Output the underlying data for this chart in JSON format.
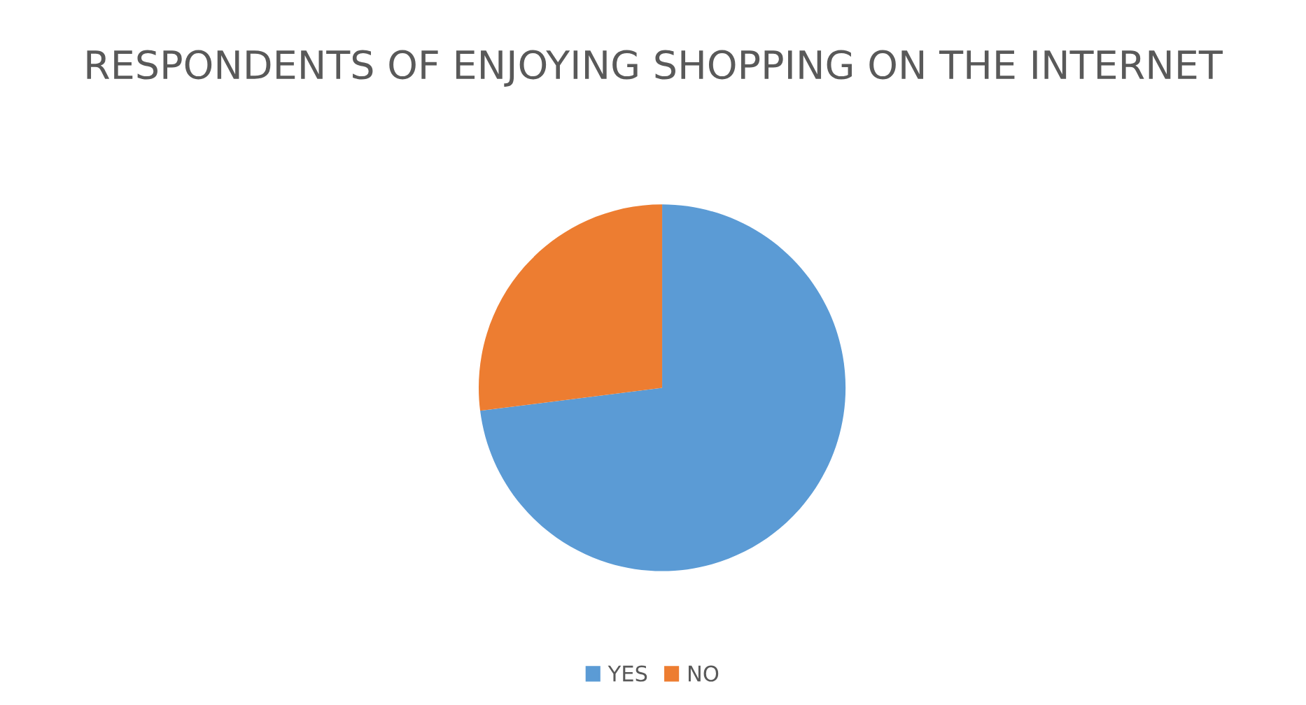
{
  "chart_data": {
    "type": "pie",
    "title": "RESPONDENTS OF ENJOYING SHOPPING ON THE INTERNET",
    "categories": [
      "YES",
      "NO"
    ],
    "values": [
      73,
      27
    ],
    "colors": [
      "#5b9bd5",
      "#ed7d31"
    ],
    "legend": "bottom"
  }
}
